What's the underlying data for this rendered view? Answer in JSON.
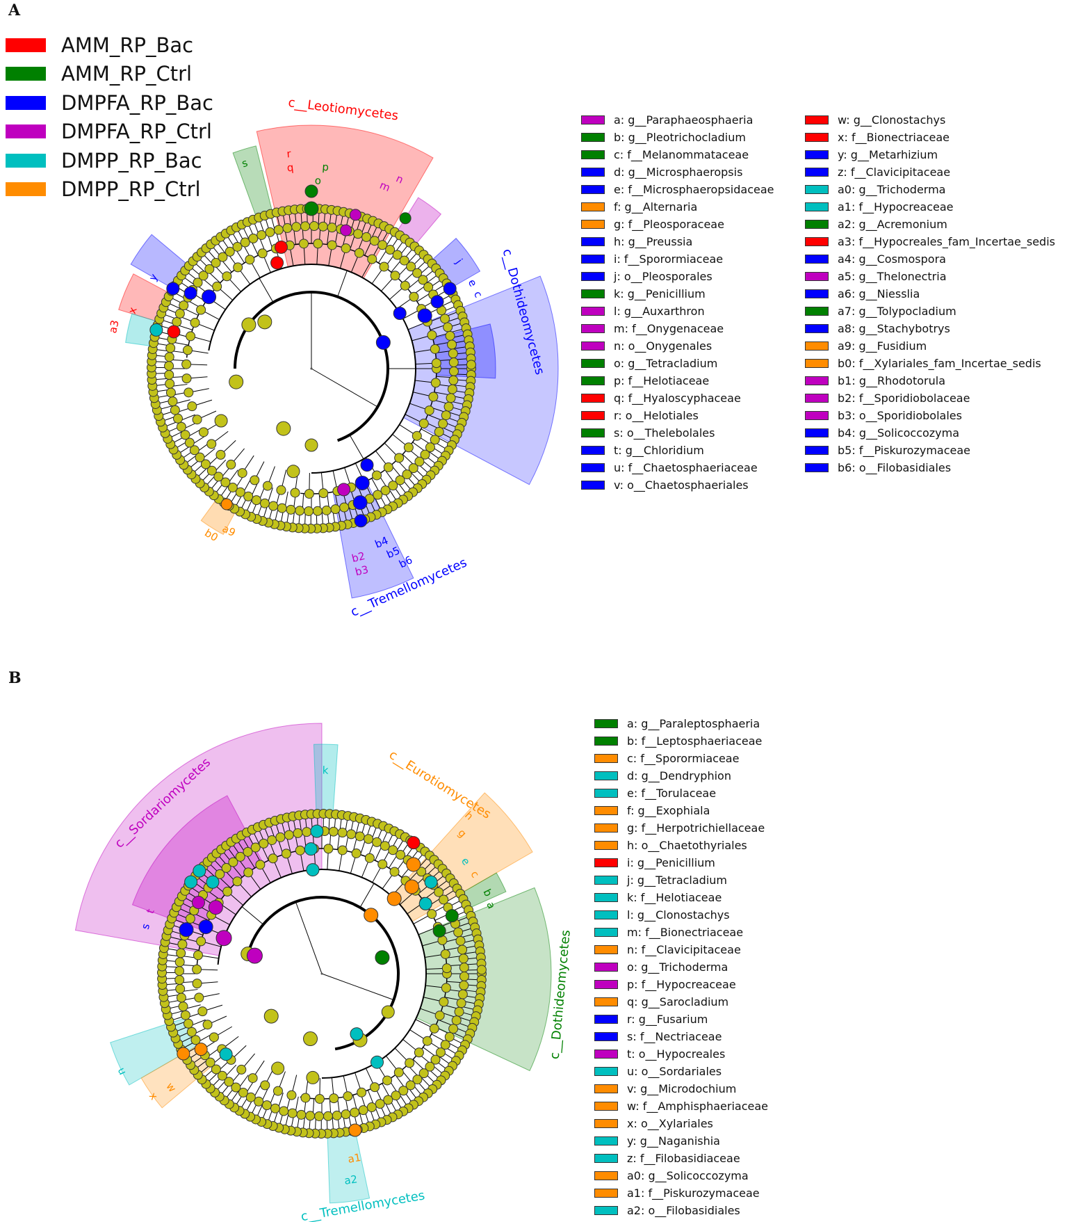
{
  "groups": [
    {
      "name": "AMM_RP_Bac",
      "color": "#ff0000"
    },
    {
      "name": "AMM_RP_Ctrl",
      "color": "#008000"
    },
    {
      "name": "DMPFA_RP_Bac",
      "color": "#0000ff"
    },
    {
      "name": "DMPFA_RP_Ctrl",
      "color": "#bf00bf"
    },
    {
      "name": "DMPP_RP_Bac",
      "color": "#00bfbf"
    },
    {
      "name": "DMPP_RP_Ctrl",
      "color": "#ff8c00"
    }
  ],
  "panel_a": {
    "label": "A",
    "clades": [
      {
        "name": "c__Leotiomycetes",
        "color": "#ff0000"
      },
      {
        "name": "c__Dothideomycetes",
        "color": "#0000ff"
      },
      {
        "name": "c__Tremellomycetes",
        "color": "#0000ff"
      }
    ],
    "legend_col1": [
      {
        "text": "a: g__Paraphaeosphaeria",
        "color": "#bf00bf"
      },
      {
        "text": "b: g__Pleotrichocladium",
        "color": "#008000"
      },
      {
        "text": "c: f__Melanommataceae",
        "color": "#008000"
      },
      {
        "text": "d: g__Microsphaeropsis",
        "color": "#0000ff"
      },
      {
        "text": "e: f__Microsphaeropsidaceae",
        "color": "#0000ff"
      },
      {
        "text": "f: g__Alternaria",
        "color": "#ff8c00"
      },
      {
        "text": "g: f__Pleosporaceae",
        "color": "#ff8c00"
      },
      {
        "text": "h: g__Preussia",
        "color": "#0000ff"
      },
      {
        "text": "i: f__Sporormiaceae",
        "color": "#0000ff"
      },
      {
        "text": "j: o__Pleosporales",
        "color": "#0000ff"
      },
      {
        "text": "k: g__Penicillium",
        "color": "#008000"
      },
      {
        "text": "l: g__Auxarthron",
        "color": "#bf00bf"
      },
      {
        "text": "m: f__Onygenaceae",
        "color": "#bf00bf"
      },
      {
        "text": "n: o__Onygenales",
        "color": "#bf00bf"
      },
      {
        "text": "o: g__Tetracladium",
        "color": "#008000"
      },
      {
        "text": "p: f__Helotiaceae",
        "color": "#008000"
      },
      {
        "text": "q: f__Hyaloscyphaceae",
        "color": "#ff0000"
      },
      {
        "text": "r: o__Helotiales",
        "color": "#ff0000"
      },
      {
        "text": "s: o__Thelebolales",
        "color": "#008000"
      },
      {
        "text": "t: g__Chloridium",
        "color": "#0000ff"
      },
      {
        "text": "u: f__Chaetosphaeriaceae",
        "color": "#0000ff"
      },
      {
        "text": "v: o__Chaetosphaeriales",
        "color": "#0000ff"
      }
    ],
    "legend_col2": [
      {
        "text": "w: g__Clonostachys",
        "color": "#ff0000"
      },
      {
        "text": "x: f__Bionectriaceae",
        "color": "#ff0000"
      },
      {
        "text": "y: g__Metarhizium",
        "color": "#0000ff"
      },
      {
        "text": "z: f__Clavicipitaceae",
        "color": "#0000ff"
      },
      {
        "text": "a0: g__Trichoderma",
        "color": "#00bfbf"
      },
      {
        "text": "a1: f__Hypocreaceae",
        "color": "#00bfbf"
      },
      {
        "text": "a2: g__Acremonium",
        "color": "#008000"
      },
      {
        "text": "a3: f__Hypocreales_fam_Incertae_sedis",
        "color": "#ff0000"
      },
      {
        "text": "a4: g__Cosmospora",
        "color": "#0000ff"
      },
      {
        "text": "a5: g__Thelonectria",
        "color": "#bf00bf"
      },
      {
        "text": "a6: g__Niesslia",
        "color": "#0000ff"
      },
      {
        "text": "a7: g__Tolypocladium",
        "color": "#008000"
      },
      {
        "text": "a8: g__Stachybotrys",
        "color": "#0000ff"
      },
      {
        "text": "a9: g__Fusidium",
        "color": "#ff8c00"
      },
      {
        "text": "b0: f__Xylariales_fam_Incertae_sedis",
        "color": "#ff8c00"
      },
      {
        "text": "b1: g__Rhodotorula",
        "color": "#bf00bf"
      },
      {
        "text": "b2: f__Sporidiobolaceae",
        "color": "#bf00bf"
      },
      {
        "text": "b3: o__Sporidiobolales",
        "color": "#bf00bf"
      },
      {
        "text": "b4: g__Solicoccozyma",
        "color": "#0000ff"
      },
      {
        "text": "b5: f__Piskurozymaceae",
        "color": "#0000ff"
      },
      {
        "text": "b6: o__Filobasidiales",
        "color": "#0000ff"
      }
    ]
  },
  "panel_b": {
    "label": "B",
    "clades": [
      {
        "name": "c__Sordariomycetes",
        "color": "#bf00bf"
      },
      {
        "name": "c__Eurotiomycetes",
        "color": "#ff8c00"
      },
      {
        "name": "c__Dothideomycetes",
        "color": "#008000"
      },
      {
        "name": "c__Tremellomycetes",
        "color": "#00bfbf"
      }
    ],
    "legend": [
      {
        "text": "a: g__Paraleptosphaeria",
        "color": "#008000"
      },
      {
        "text": "b: f__Leptosphaeriaceae",
        "color": "#008000"
      },
      {
        "text": "c: f__Sporormiaceae",
        "color": "#ff8c00"
      },
      {
        "text": "d: g__Dendryphion",
        "color": "#00bfbf"
      },
      {
        "text": "e: f__Torulaceae",
        "color": "#00bfbf"
      },
      {
        "text": "f: g__Exophiala",
        "color": "#ff8c00"
      },
      {
        "text": "g: f__Herpotrichiellaceae",
        "color": "#ff8c00"
      },
      {
        "text": "h: o__Chaetothyriales",
        "color": "#ff8c00"
      },
      {
        "text": "i: g__Penicillium",
        "color": "#ff0000"
      },
      {
        "text": "j: g__Tetracladium",
        "color": "#00bfbf"
      },
      {
        "text": "k: f__Helotiaceae",
        "color": "#00bfbf"
      },
      {
        "text": "l: g__Clonostachys",
        "color": "#00bfbf"
      },
      {
        "text": "m: f__Bionectriaceae",
        "color": "#00bfbf"
      },
      {
        "text": "n: f__Clavicipitaceae",
        "color": "#ff8c00"
      },
      {
        "text": "o: g__Trichoderma",
        "color": "#bf00bf"
      },
      {
        "text": "p: f__Hypocreaceae",
        "color": "#bf00bf"
      },
      {
        "text": "q: g__Sarocladium",
        "color": "#ff8c00"
      },
      {
        "text": "r: g__Fusarium",
        "color": "#0000ff"
      },
      {
        "text": "s: f__Nectriaceae",
        "color": "#0000ff"
      },
      {
        "text": "t: o__Hypocreales",
        "color": "#bf00bf"
      },
      {
        "text": "u: o__Sordariales",
        "color": "#00bfbf"
      },
      {
        "text": "v: g__Microdochium",
        "color": "#ff8c00"
      },
      {
        "text": "w: f__Amphisphaeriaceae",
        "color": "#ff8c00"
      },
      {
        "text": "x: o__Xylariales",
        "color": "#ff8c00"
      },
      {
        "text": "y: g__Naganishia",
        "color": "#00bfbf"
      },
      {
        "text": "z: f__Filobasidiaceae",
        "color": "#00bfbf"
      },
      {
        "text": "a0: g__Solicoccozyma",
        "color": "#ff8c00"
      },
      {
        "text": "a1: f__Piskurozymaceae",
        "color": "#ff8c00"
      },
      {
        "text": "a2: o__Filobasidiales",
        "color": "#00bfbf"
      }
    ]
  }
}
